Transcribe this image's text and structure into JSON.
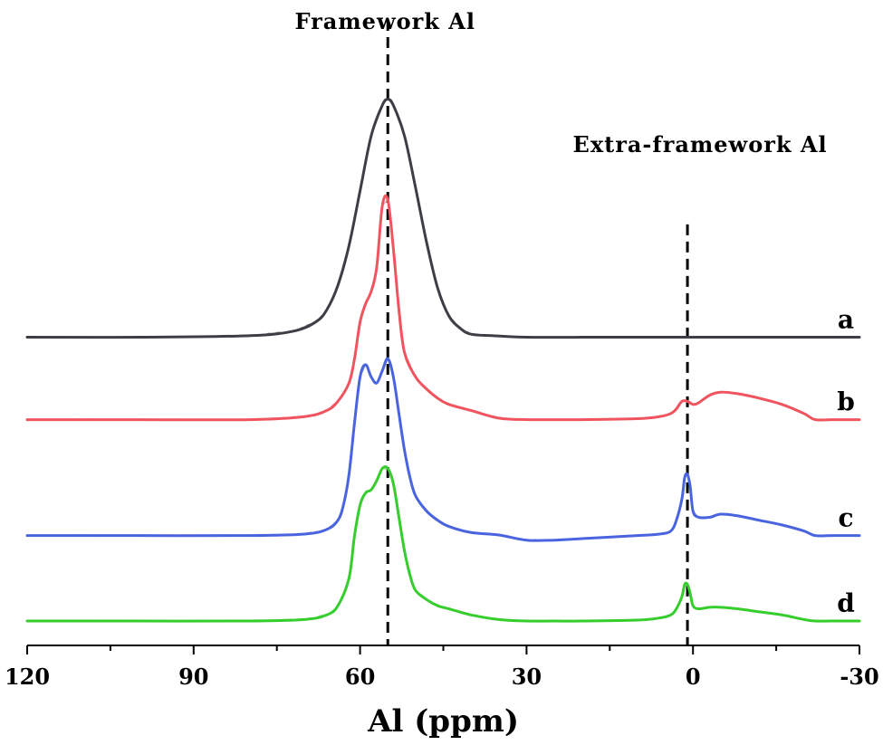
{
  "chart_data": {
    "type": "line",
    "xlabel": "Al (ppm)",
    "xlim": [
      120,
      -30
    ],
    "x_reversed": true,
    "y_offsets": [
      0.93,
      0.66,
      0.28,
      0.0
    ],
    "y_range": [
      -0.08,
      1.97
    ],
    "grid": false,
    "x_ticks": [
      {
        "value": 120,
        "label": "120"
      },
      {
        "value": 90,
        "label": "90"
      },
      {
        "value": 60,
        "label": "60"
      },
      {
        "value": 30,
        "label": "30"
      },
      {
        "value": 0,
        "label": "0"
      },
      {
        "value": -30,
        "label": "-30"
      }
    ],
    "x_minor_ticks": [
      105,
      75,
      45,
      15,
      -15
    ],
    "annotations": [
      {
        "text": "Framework Al",
        "x": 55
      },
      {
        "text": "Extra-framework Al",
        "x": 1
      }
    ],
    "reference_lines": [
      {
        "x": 55,
        "style": "dashed",
        "y_top": 1.97
      },
      {
        "x": 1,
        "style": "dashed",
        "y_top": 1.3
      }
    ],
    "series": [
      {
        "label": "a",
        "color": "#3d3f45",
        "offset": 0.93,
        "x": [
          120,
          100,
          80,
          72,
          68,
          66,
          64,
          62,
          60,
          58,
          56,
          55,
          54,
          52,
          50,
          48,
          46,
          44,
          42,
          40,
          36,
          30,
          20,
          10,
          0,
          -10,
          -20,
          -30
        ],
        "y": [
          0,
          0,
          0.005,
          0.02,
          0.05,
          0.09,
          0.17,
          0.3,
          0.48,
          0.66,
          0.76,
          0.78,
          0.76,
          0.66,
          0.49,
          0.31,
          0.16,
          0.07,
          0.03,
          0.01,
          0.005,
          0,
          0,
          0,
          0,
          0,
          0,
          0
        ]
      },
      {
        "label": "b",
        "color": "#f0545e",
        "offset": 0.66,
        "x": [
          120,
          100,
          80,
          70,
          66,
          64,
          62,
          61,
          60,
          59,
          58,
          57,
          56,
          55,
          54,
          53,
          52,
          50,
          48,
          46,
          44,
          40,
          35,
          30,
          25,
          20,
          10,
          6,
          4,
          3,
          2,
          1,
          0,
          -1,
          -3,
          -5,
          -8,
          -12,
          -16,
          -20,
          -22,
          -25,
          -30
        ],
        "y": [
          0,
          0,
          0,
          0.01,
          0.03,
          0.06,
          0.12,
          0.2,
          0.32,
          0.38,
          0.42,
          0.5,
          0.7,
          0.72,
          0.56,
          0.36,
          0.22,
          0.14,
          0.1,
          0.07,
          0.05,
          0.03,
          0.005,
          0,
          0,
          0,
          0.003,
          0.01,
          0.02,
          0.035,
          0.06,
          0.06,
          0.05,
          0.055,
          0.08,
          0.09,
          0.085,
          0.07,
          0.05,
          0.02,
          0,
          0,
          0
        ]
      },
      {
        "label": "c",
        "color": "#4a64e0",
        "offset": 0.28,
        "x": [
          120,
          100,
          80,
          70,
          66,
          64,
          63,
          62,
          61,
          60,
          59,
          58,
          57,
          56,
          55,
          54,
          53,
          52,
          51,
          50,
          48,
          46,
          44,
          40,
          35,
          30,
          25,
          20,
          10,
          6,
          4,
          3,
          2,
          1.5,
          1,
          0.5,
          0,
          -1,
          -3,
          -5,
          -8,
          -12,
          -16,
          -20,
          -22,
          -25,
          -30
        ],
        "y": [
          0,
          0,
          0,
          0.005,
          0.02,
          0.05,
          0.1,
          0.2,
          0.37,
          0.52,
          0.56,
          0.52,
          0.5,
          0.54,
          0.58,
          0.52,
          0.4,
          0.28,
          0.19,
          0.13,
          0.08,
          0.05,
          0.03,
          0.01,
          0.002,
          -0.015,
          -0.015,
          -0.01,
          0,
          0.005,
          0.015,
          0.05,
          0.12,
          0.19,
          0.2,
          0.16,
          0.08,
          0.06,
          0.06,
          0.07,
          0.065,
          0.05,
          0.035,
          0.015,
          0,
          0,
          0
        ]
      },
      {
        "label": "d",
        "color": "#36cd2e",
        "offset": 0.0,
        "x": [
          120,
          100,
          80,
          70,
          66,
          64,
          62,
          61,
          60,
          59,
          58,
          57,
          56,
          55,
          54,
          53,
          52,
          51,
          50,
          48,
          46,
          44,
          40,
          35,
          30,
          25,
          20,
          10,
          6,
          4,
          3,
          2,
          1.5,
          1,
          0.5,
          0,
          -1,
          -3,
          -5,
          -8,
          -12,
          -16,
          -20,
          -22,
          -25,
          -30
        ],
        "y": [
          0,
          0,
          0,
          0.005,
          0.02,
          0.05,
          0.14,
          0.28,
          0.38,
          0.42,
          0.43,
          0.46,
          0.5,
          0.5,
          0.45,
          0.34,
          0.23,
          0.15,
          0.1,
          0.07,
          0.05,
          0.04,
          0.02,
          0.005,
          0,
          0,
          0,
          0.003,
          0.01,
          0.02,
          0.04,
          0.08,
          0.12,
          0.12,
          0.09,
          0.05,
          0.04,
          0.045,
          0.045,
          0.04,
          0.03,
          0.02,
          0.005,
          0,
          0,
          0
        ]
      }
    ]
  }
}
